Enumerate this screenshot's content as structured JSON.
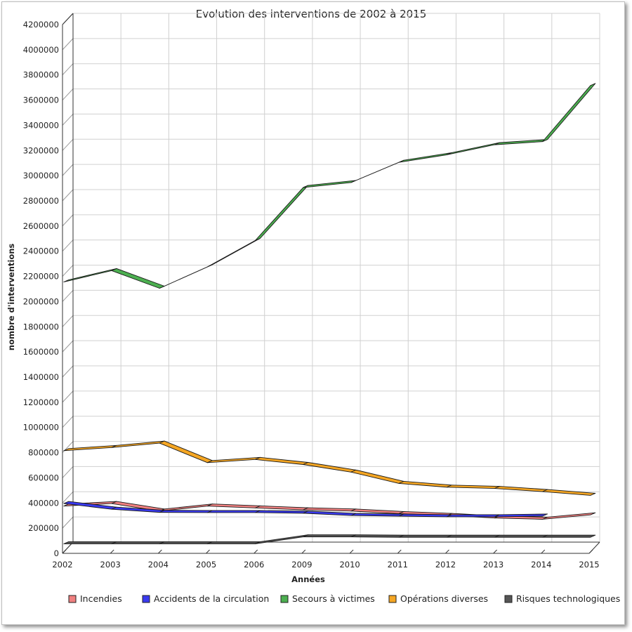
{
  "chart_data": {
    "type": "line",
    "title": "Evolution des interventions de 2002 à 2015",
    "xlabel": "Années",
    "ylabel": "nombre d'interventions",
    "categories": [
      "2002",
      "2003",
      "2004",
      "2005",
      "2006",
      "2009",
      "2010",
      "2011",
      "2012",
      "2013",
      "2014",
      "2015"
    ],
    "ylim": [
      0,
      4200000
    ],
    "yticks": [
      0,
      200000,
      400000,
      600000,
      800000,
      1000000,
      1200000,
      1400000,
      1600000,
      1800000,
      2000000,
      2200000,
      2400000,
      2600000,
      2800000,
      3000000,
      3200000,
      3400000,
      3600000,
      3800000,
      4000000,
      4200000
    ],
    "grid": true,
    "legend_position": "bottom",
    "three_d": true,
    "series": [
      {
        "name": "Incendies",
        "color": "#f08080",
        "values": [
          370000,
          390000,
          330000,
          370000,
          355000,
          340000,
          330000,
          310000,
          295000,
          275000,
          265000,
          300000
        ]
      },
      {
        "name": "Accidents de la circulation",
        "color": "#3a3af0",
        "values": [
          390000,
          345000,
          320000,
          318000,
          318000,
          313000,
          295000,
          290000,
          285000,
          285000,
          290000,
          null
        ]
      },
      {
        "name": "Secours à victimes",
        "color": "#4caf50",
        "values": [
          2150000,
          2240000,
          2100000,
          2270000,
          2480000,
          2900000,
          2940000,
          3100000,
          3160000,
          3240000,
          3265000,
          3710000
        ]
      },
      {
        "name": "Opérations diverses",
        "color": "#f5a623",
        "values": [
          810000,
          835000,
          870000,
          715000,
          740000,
          700000,
          640000,
          550000,
          520000,
          510000,
          485000,
          455000
        ]
      },
      {
        "name": "Risques technologiques",
        "color": "#555555",
        "values": [
          70000,
          70000,
          70000,
          70000,
          70000,
          125000,
          125000,
          122000,
          122000,
          122000,
          122000,
          122000
        ]
      }
    ]
  }
}
